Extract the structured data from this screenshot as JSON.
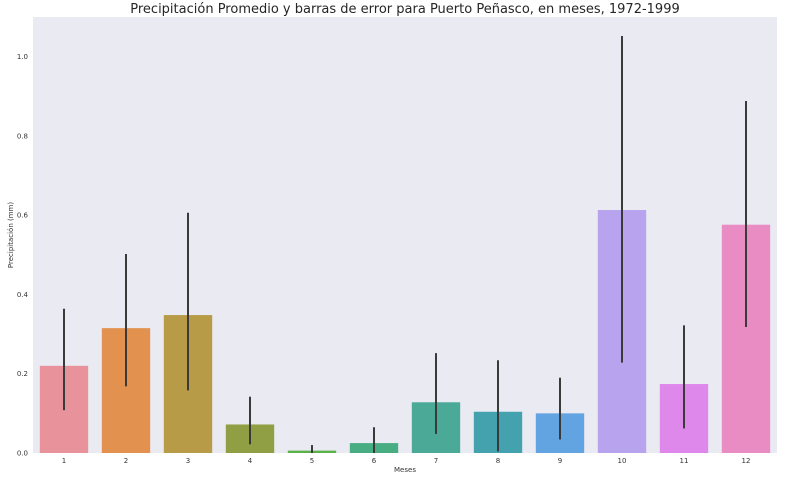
{
  "chart_data": {
    "type": "bar",
    "title": "Precipitación Promedio y barras de error para Puerto Peñasco, en meses, 1972-1999",
    "xlabel": "Meses",
    "ylabel": "Precipitación (mm)",
    "categories": [
      "1",
      "2",
      "3",
      "4",
      "5",
      "6",
      "7",
      "8",
      "9",
      "10",
      "11",
      "12"
    ],
    "values": [
      0.22,
      0.315,
      0.348,
      0.072,
      0.006,
      0.025,
      0.128,
      0.104,
      0.1,
      0.613,
      0.174,
      0.576
    ],
    "error_low": [
      0.108,
      0.168,
      0.158,
      0.022,
      0.0,
      0.0,
      0.048,
      0.004,
      0.034,
      0.228,
      0.062,
      0.318
    ],
    "error_high": [
      0.364,
      0.502,
      0.606,
      0.142,
      0.02,
      0.065,
      0.252,
      0.234,
      0.19,
      1.052,
      0.322,
      0.888
    ],
    "colors": [
      "#e8929b",
      "#e2914f",
      "#b89b46",
      "#919f44",
      "#5bb04c",
      "#49ad83",
      "#4baa97",
      "#44a2ae",
      "#62a4e1",
      "#b8a4ee",
      "#df88ec",
      "#e98cc4"
    ],
    "error_color": "#3a3a3a",
    "background": "#eaeaf2",
    "grid": false,
    "ylim": [
      0,
      1.1
    ],
    "yticks": [
      "0.0",
      "0.2",
      "0.4",
      "0.6",
      "0.8",
      "1.0"
    ]
  }
}
